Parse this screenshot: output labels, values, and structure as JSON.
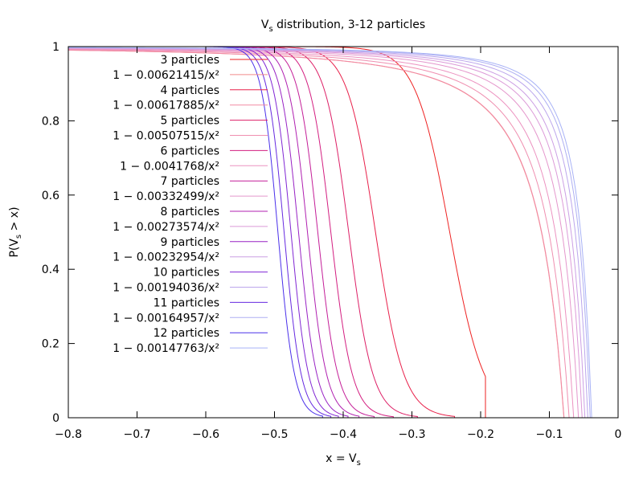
{
  "chart_data": {
    "type": "line",
    "title": {
      "main": "V",
      "sub": "s",
      "rest": " distribution, 3-12 particles"
    },
    "xlabel": {
      "pre": "x = V",
      "sub": "s",
      "post": ""
    },
    "ylabel": {
      "pre": "P(V",
      "sub": "s",
      "post": " > x)"
    },
    "xlim": [
      -0.8,
      0
    ],
    "ylim": [
      0,
      1
    ],
    "xticks": [
      {
        "v": -0.8,
        "label": "−0.8"
      },
      {
        "v": -0.7,
        "label": "−0.7"
      },
      {
        "v": -0.6,
        "label": "−0.6"
      },
      {
        "v": -0.5,
        "label": "−0.5"
      },
      {
        "v": -0.4,
        "label": "−0.4"
      },
      {
        "v": -0.3,
        "label": "−0.3"
      },
      {
        "v": -0.2,
        "label": "−0.2"
      },
      {
        "v": -0.1,
        "label": "−0.1"
      },
      {
        "v": 0,
        "label": "0"
      }
    ],
    "yticks": [
      {
        "v": 0,
        "label": "0"
      },
      {
        "v": 0.2,
        "label": "0.2"
      },
      {
        "v": 0.4,
        "label": "0.4"
      },
      {
        "v": 0.6,
        "label": "0.6"
      },
      {
        "v": 0.8,
        "label": "0.8"
      },
      {
        "v": 1,
        "label": "1"
      }
    ],
    "grid": false,
    "legend_position": "top-left",
    "series": [
      {
        "name": "3 particles",
        "kind": "empirical",
        "color": "#ee2222",
        "x50": -0.245,
        "w": 0.025,
        "end": -0.193
      },
      {
        "name": "1 − 0.00621415/x²",
        "kind": "fit",
        "coef": 0.00621415,
        "color": "#f08a8a"
      },
      {
        "name": "4 particles",
        "kind": "empirical",
        "color": "#e8204a",
        "x50": -0.353,
        "w": 0.0205,
        "end": -0.238
      },
      {
        "name": "1 − 0.00617885/x²",
        "kind": "fit",
        "coef": 0.00617885,
        "color": "#f28aa4"
      },
      {
        "name": "5 particles",
        "kind": "empirical",
        "color": "#dd1f66",
        "x50": -0.392,
        "w": 0.0175,
        "end": -0.292
      },
      {
        "name": "1 − 0.00507515/x²",
        "kind": "fit",
        "coef": 0.00507515,
        "color": "#ef8fb0"
      },
      {
        "name": "6 particles",
        "kind": "empirical",
        "color": "#d31e80",
        "x50": -0.418,
        "w": 0.0155,
        "end": -0.327
      },
      {
        "name": "1 − 0.0041768/x²",
        "kind": "fit",
        "coef": 0.0041768,
        "color": "#ec92c0"
      },
      {
        "name": "7 particles",
        "kind": "empirical",
        "color": "#c41e98",
        "x50": -0.437,
        "w": 0.0145,
        "end": -0.355
      },
      {
        "name": "1 − 0.00332499/x²",
        "kind": "fit",
        "coef": 0.00332499,
        "color": "#e496cc"
      },
      {
        "name": "8 particles",
        "kind": "empirical",
        "color": "#b020b0",
        "x50": -0.452,
        "w": 0.0138,
        "end": -0.377
      },
      {
        "name": "1 − 0.00273574/x²",
        "kind": "fit",
        "coef": 0.00273574,
        "color": "#dc9ad8"
      },
      {
        "name": "9 particles",
        "kind": "empirical",
        "color": "#9822c4",
        "x50": -0.465,
        "w": 0.0132,
        "end": -0.393
      },
      {
        "name": "1 − 0.00232954/x²",
        "kind": "fit",
        "coef": 0.00232954,
        "color": "#cc9fe4"
      },
      {
        "name": "10 particles",
        "kind": "empirical",
        "color": "#8026d4",
        "x50": -0.476,
        "w": 0.0127,
        "end": -0.407
      },
      {
        "name": "1 − 0.00194036/x²",
        "kind": "fit",
        "coef": 0.00194036,
        "color": "#bca6ec"
      },
      {
        "name": "11 particles",
        "kind": "empirical",
        "color": "#662ae0",
        "x50": -0.486,
        "w": 0.0123,
        "end": -0.418
      },
      {
        "name": "1 − 0.00164957/x²",
        "kind": "fit",
        "coef": 0.00164957,
        "color": "#aeaef2"
      },
      {
        "name": "12 particles",
        "kind": "empirical",
        "color": "#4a30ea",
        "x50": -0.495,
        "w": 0.012,
        "end": -0.43
      },
      {
        "name": "1 − 0.00147763/x²",
        "kind": "fit",
        "coef": 0.00147763,
        "color": "#a8b2f6"
      }
    ]
  }
}
